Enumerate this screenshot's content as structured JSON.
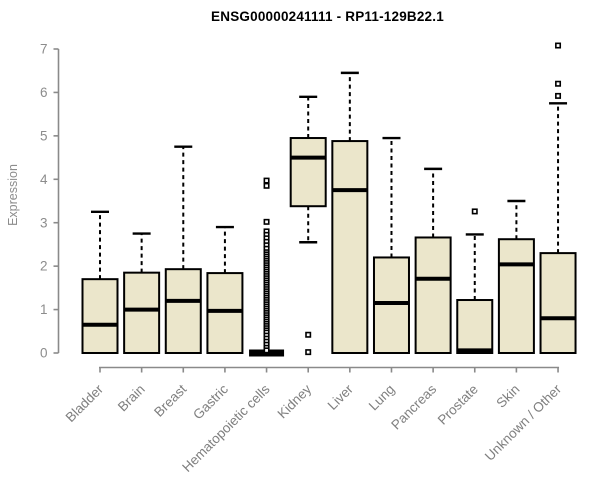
{
  "chart_data": {
    "type": "boxplot",
    "title": "ENSG00000241111 - RP11-129B22.1",
    "xlabel": "",
    "ylabel": "Expression",
    "ylim": [
      0,
      7
    ],
    "yticks": [
      0,
      1,
      2,
      3,
      4,
      5,
      6,
      7
    ],
    "grid": false,
    "legend": "none",
    "categories": [
      "Bladder",
      "Brain",
      "Breast",
      "Gastric",
      "Hematopoietic cells",
      "Kidney",
      "Liver",
      "Lung",
      "Pancreas",
      "Prostate",
      "Skin",
      "Unknown / Other"
    ],
    "boxes": [
      {
        "category": "Bladder",
        "key": "bladder",
        "whisker_low": 0,
        "q1": 0,
        "median": 0.65,
        "q3": 1.7,
        "whisker_high": 3.25,
        "outliers": []
      },
      {
        "category": "Brain",
        "key": "brain",
        "whisker_low": 0,
        "q1": 0,
        "median": 1.0,
        "q3": 1.85,
        "whisker_high": 2.75,
        "outliers": []
      },
      {
        "category": "Breast",
        "key": "breast",
        "whisker_low": 0,
        "q1": 0,
        "median": 1.2,
        "q3": 1.93,
        "whisker_high": 4.75,
        "outliers": []
      },
      {
        "category": "Gastric",
        "key": "gastric",
        "whisker_low": 0,
        "q1": 0,
        "median": 0.97,
        "q3": 1.84,
        "whisker_high": 2.9,
        "outliers": []
      },
      {
        "category": "Hematopoietic cells",
        "key": "hematopoietic-cells",
        "whisker_low": 0,
        "q1": 0,
        "median": 0.0,
        "q3": 0,
        "whisker_high": 0,
        "outliers": [
          3.97,
          3.85,
          3.02,
          2.8,
          2.72,
          2.64,
          2.56,
          2.48,
          2.4,
          2.32,
          2.27,
          2.22,
          2.17,
          2.12,
          2.07,
          2.02,
          1.97,
          1.92,
          1.87,
          1.82,
          1.77,
          1.72,
          1.67,
          1.62,
          1.57,
          1.52,
          1.47,
          1.42,
          1.37,
          1.32,
          1.27,
          1.22,
          1.17,
          1.12,
          1.07,
          1.02,
          0.97,
          0.92,
          0.87,
          0.82,
          0.77,
          0.72,
          0.67,
          0.62,
          0.57,
          0.52,
          0.47,
          0.4,
          0.33,
          0.26,
          0.19,
          0.12,
          0.06
        ]
      },
      {
        "category": "Kidney",
        "key": "kidney",
        "whisker_low": 2.55,
        "q1": 3.38,
        "median": 4.5,
        "q3": 4.95,
        "whisker_high": 5.9,
        "outliers": [
          0.42,
          0.02
        ]
      },
      {
        "category": "Liver",
        "key": "liver",
        "whisker_low": 0,
        "q1": 0,
        "median": 3.75,
        "q3": 4.88,
        "whisker_high": 6.45,
        "outliers": []
      },
      {
        "category": "Lung",
        "key": "lung",
        "whisker_low": 0,
        "q1": 0,
        "median": 1.15,
        "q3": 2.2,
        "whisker_high": 4.95,
        "outliers": []
      },
      {
        "category": "Pancreas",
        "key": "pancreas",
        "whisker_low": 0,
        "q1": 0,
        "median": 1.71,
        "q3": 2.66,
        "whisker_high": 4.24,
        "outliers": []
      },
      {
        "category": "Prostate",
        "key": "prostate",
        "whisker_low": 0,
        "q1": 0,
        "median": 0.06,
        "q3": 1.22,
        "whisker_high": 2.73,
        "outliers": [
          3.26
        ]
      },
      {
        "category": "Skin",
        "key": "skin",
        "whisker_low": 0,
        "q1": 0,
        "median": 2.04,
        "q3": 2.62,
        "whisker_high": 3.5,
        "outliers": []
      },
      {
        "category": "Unknown / Other",
        "key": "unknown-other",
        "whisker_low": 0,
        "q1": 0,
        "median": 0.8,
        "q3": 2.3,
        "whisker_high": 5.75,
        "outliers": [
          5.92,
          6.2,
          7.08
        ]
      }
    ],
    "colors": {
      "box_fill": "#EBE6CB",
      "box_border": "#000000",
      "median": "#000000",
      "whisker": "#000000",
      "outlier_border": "#000000",
      "outlier_fill": "#ffffff",
      "axis": "#8a8a8a",
      "tick_label": "#8c8c8c",
      "category_label": "#7f7f7f",
      "title": "#000000",
      "background": "#ffffff"
    }
  }
}
